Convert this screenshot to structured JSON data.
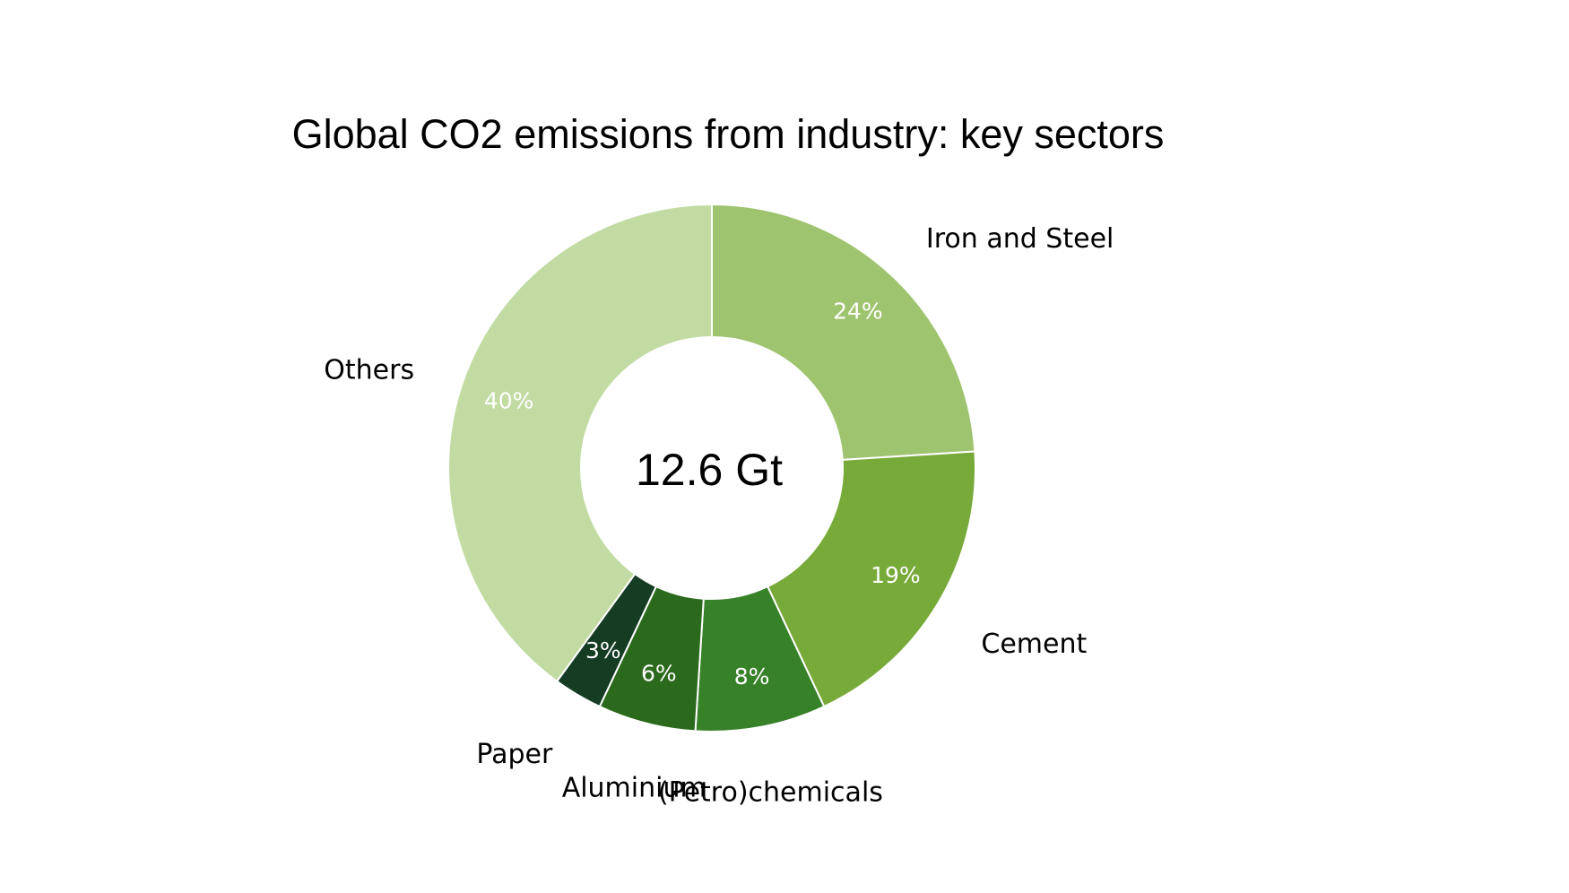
{
  "chart_data": {
    "type": "donut",
    "title": "Global CO2 emissions from industry: key sectors",
    "center_label": "12.6 Gt",
    "categories": [
      "Iron and Steel",
      "Cement",
      "(Petro)chemicals",
      "Aluminium",
      "Paper",
      "Others"
    ],
    "values": [
      24,
      19,
      8,
      6,
      3,
      40
    ],
    "value_labels": [
      "24%",
      "19%",
      "8%",
      "6%",
      "3%",
      "40%"
    ],
    "colors": [
      "#9fc46f",
      "#78aa3a",
      "#378129",
      "#2b6a1d",
      "#163d24",
      "#c1dba3"
    ]
  }
}
